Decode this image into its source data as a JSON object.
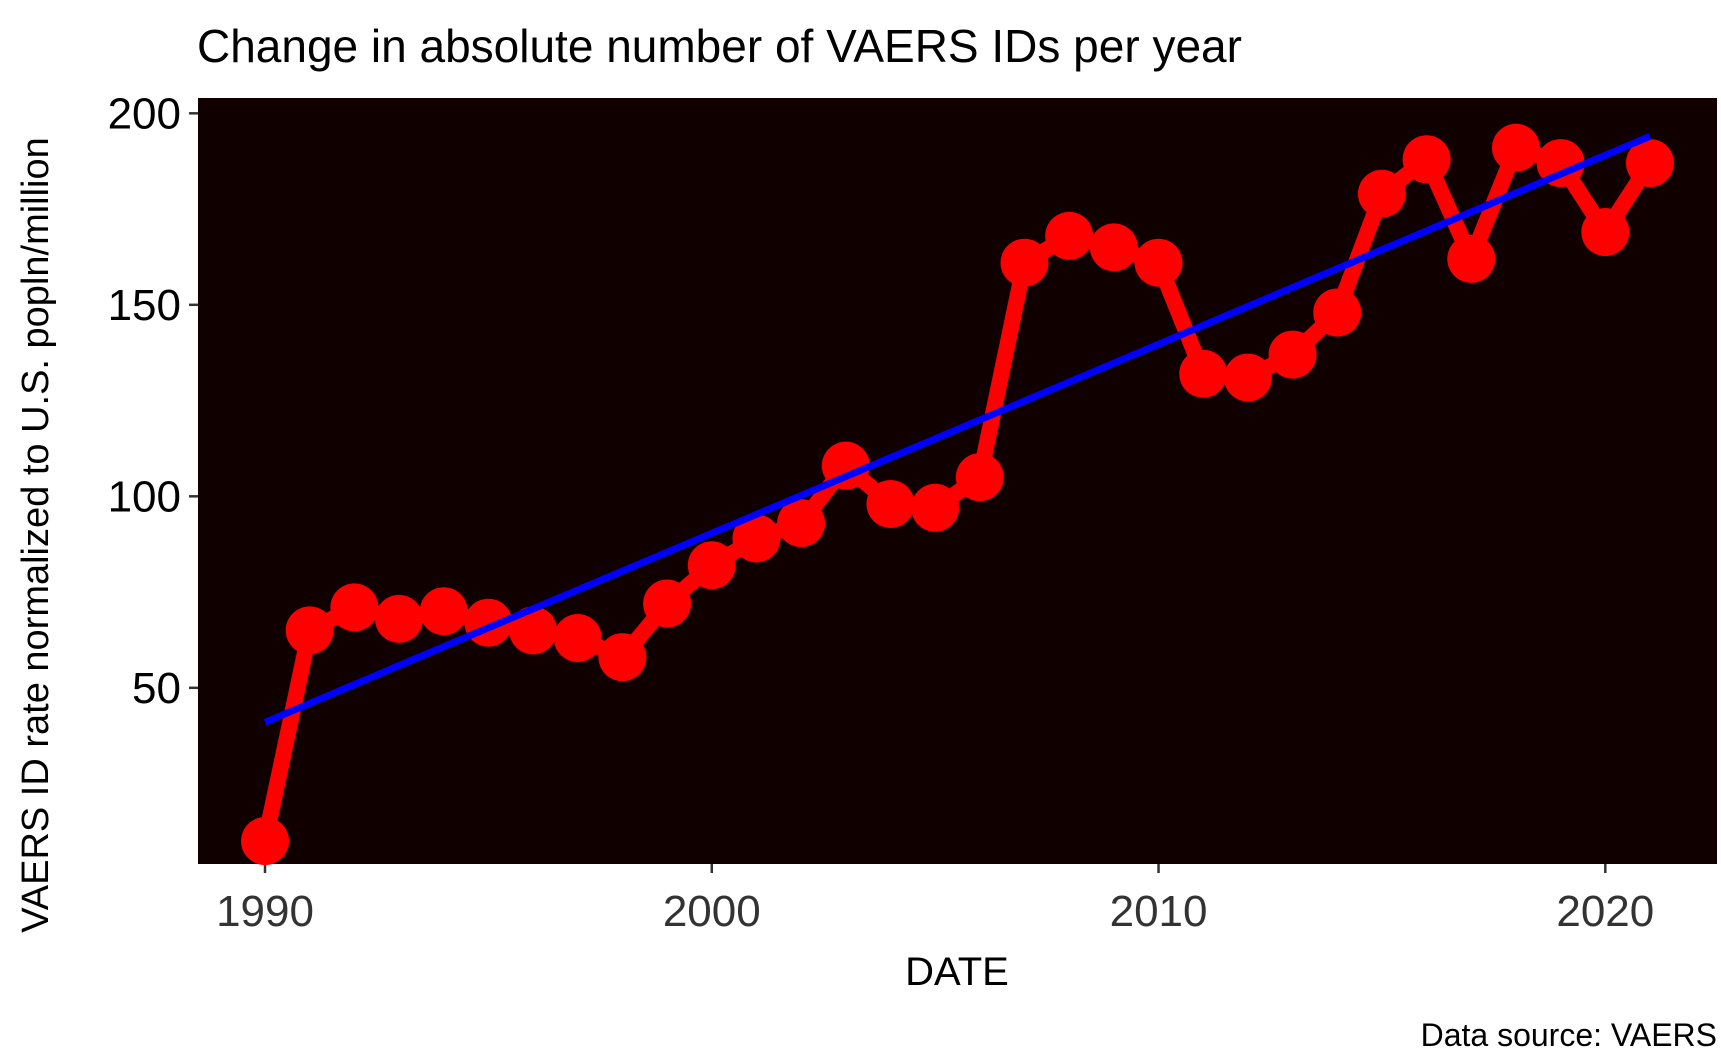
{
  "chart_data": {
    "type": "line",
    "title": "Change in absolute number of VAERS IDs per year",
    "xlabel": "DATE",
    "ylabel": "VAERS ID rate normalized to U.S. popln/million",
    "caption": "Data source: VAERS",
    "xlim": [
      1988.5,
      2022.5
    ],
    "ylim": [
      4,
      204
    ],
    "x_ticks": [
      1990,
      2000,
      2010,
      2020
    ],
    "y_ticks": [
      50,
      100,
      150,
      200
    ],
    "grid": false,
    "legend": "none",
    "background_color": "#100000",
    "series": [
      {
        "color": "#ff0000",
        "style": "line-with-points",
        "x": [
          1990,
          1991,
          1992,
          1993,
          1994,
          1995,
          1996,
          1997,
          1998,
          1999,
          2000,
          2001,
          2002,
          2003,
          2004,
          2005,
          2006,
          2007,
          2008,
          2009,
          2010,
          2011,
          2012,
          2013,
          2014,
          2015,
          2016,
          2017,
          2018,
          2019,
          2020,
          2021
        ],
        "values": [
          10,
          65,
          71,
          68,
          70,
          67,
          65,
          63,
          58,
          72,
          82,
          89,
          93,
          108,
          98,
          97,
          105,
          161,
          168,
          165,
          161,
          132,
          131,
          137,
          148,
          179,
          188,
          162,
          191,
          187,
          169,
          187
        ]
      },
      {
        "color": "#0000ff",
        "style": "trend-line",
        "x": [
          1990,
          2021
        ],
        "values": [
          41,
          194
        ]
      }
    ]
  }
}
